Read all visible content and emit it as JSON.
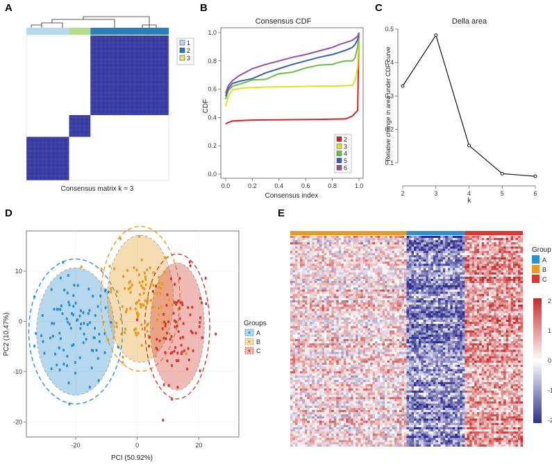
{
  "panels": {
    "A": "A",
    "B": "B",
    "C": "C",
    "D": "D",
    "E": "E"
  },
  "colors": {
    "consensus_fill": "#3b3fa3",
    "group_A": "#2b8fd0",
    "group_B": "#e69a1f",
    "group_C": "#d43a2f",
    "annot_1": "#b9d8ee",
    "annot_2": "#2b7fb8",
    "annot_3": "#b6dd8c",
    "cdf_2": "#d0232a",
    "cdf_3": "#e0e020",
    "cdf_4": "#6cbf45",
    "cdf_5": "#3a5fae",
    "cdf_6": "#9a4ea0",
    "heat_low": "#2e2d8e",
    "heat_mid": "#ffffff",
    "heat_high": "#c62a2a"
  },
  "chart_data": [
    {
      "id": "A",
      "type": "heatmap",
      "caption": "Consensus matrix k = 3",
      "legend": [
        "1",
        "2",
        "3"
      ],
      "clusters": [
        {
          "label": "1",
          "proportion": 0.3
        },
        {
          "label": "3",
          "proportion": 0.15
        },
        {
          "label": "2",
          "proportion": 0.55
        }
      ],
      "block_order": [
        "2",
        "3",
        "1"
      ]
    },
    {
      "id": "B",
      "type": "line",
      "title": "Consensus CDF",
      "xlabel": "Consensus index",
      "ylabel": "CDF",
      "xlim": [
        0,
        1
      ],
      "ylim": [
        0,
        1
      ],
      "xticks": [
        "0.0",
        "0.2",
        "0.4",
        "0.6",
        "0.8",
        "1.0"
      ],
      "yticks": [
        "0.0",
        "0.2",
        "0.4",
        "0.6",
        "0.8",
        "1.0"
      ],
      "x": [
        0.0,
        0.02,
        0.05,
        0.1,
        0.15,
        0.2,
        0.3,
        0.4,
        0.5,
        0.6,
        0.7,
        0.8,
        0.85,
        0.9,
        0.95,
        0.97,
        0.99,
        1.0
      ],
      "series": [
        {
          "name": "2",
          "values": [
            0.355,
            0.365,
            0.375,
            0.378,
            0.38,
            0.382,
            0.383,
            0.384,
            0.385,
            0.386,
            0.387,
            0.388,
            0.389,
            0.39,
            0.41,
            0.43,
            0.45,
            1.0
          ]
        },
        {
          "name": "3",
          "values": [
            0.48,
            0.55,
            0.595,
            0.605,
            0.61,
            0.612,
            0.615,
            0.617,
            0.618,
            0.62,
            0.622,
            0.622,
            0.624,
            0.625,
            0.628,
            0.66,
            0.75,
            1.0
          ]
        },
        {
          "name": "4",
          "values": [
            0.53,
            0.59,
            0.62,
            0.635,
            0.65,
            0.665,
            0.67,
            0.71,
            0.72,
            0.75,
            0.77,
            0.775,
            0.79,
            0.8,
            0.8,
            0.82,
            0.9,
            1.0
          ]
        },
        {
          "name": "5",
          "values": [
            0.55,
            0.605,
            0.64,
            0.655,
            0.665,
            0.675,
            0.715,
            0.745,
            0.775,
            0.8,
            0.825,
            0.845,
            0.86,
            0.875,
            0.895,
            0.915,
            0.95,
            1.0
          ]
        },
        {
          "name": "6",
          "values": [
            0.57,
            0.625,
            0.66,
            0.695,
            0.72,
            0.745,
            0.775,
            0.8,
            0.825,
            0.845,
            0.87,
            0.895,
            0.915,
            0.93,
            0.945,
            0.96,
            0.975,
            1.0
          ]
        }
      ]
    },
    {
      "id": "C",
      "type": "line",
      "title": "Della area",
      "xlabel": "k",
      "ylabel": "Relative change in area under CDF curve",
      "xlim": [
        2,
        6
      ],
      "ylim": [
        0.05,
        0.5
      ],
      "xticks": [
        "2",
        "3",
        "4",
        "5",
        "6"
      ],
      "yticks": [
        "0.1",
        "0.2",
        "0.3",
        "0.4",
        "0.5"
      ],
      "x": [
        2,
        3,
        4,
        5,
        6
      ],
      "values": [
        0.33,
        0.482,
        0.152,
        0.068,
        0.06
      ]
    },
    {
      "id": "D",
      "type": "scatter",
      "xlabel": "PCI (50.92%)",
      "ylabel": "PC2 (10.47%)",
      "xlim": [
        -36,
        33
      ],
      "ylim": [
        -23,
        18
      ],
      "xticks": [
        "-20",
        "0",
        "20"
      ],
      "yticks": [
        "-20",
        "-10",
        "0",
        "10"
      ],
      "legend_title": "Groups",
      "groups": [
        {
          "name": "A",
          "center": [
            -20,
            -2
          ],
          "spread": [
            6.5,
            5.5
          ],
          "n": 95
        },
        {
          "name": "B",
          "center": [
            1,
            4.5
          ],
          "spread": [
            5.5,
            5.5
          ],
          "n": 110
        },
        {
          "name": "C",
          "center": [
            13,
            -1
          ],
          "spread": [
            4.5,
            5.5
          ],
          "n": 85
        }
      ]
    },
    {
      "id": "E",
      "type": "heatmap",
      "legend_title": "Group",
      "groups": [
        "A",
        "B",
        "C"
      ],
      "column_order": [
        "B",
        "A",
        "C"
      ],
      "column_fractions": [
        0.5,
        0.25,
        0.25
      ],
      "color_scale_ticks": [
        "2",
        "1",
        "0",
        "-1",
        "-2"
      ],
      "range": [
        -2,
        2
      ]
    }
  ]
}
